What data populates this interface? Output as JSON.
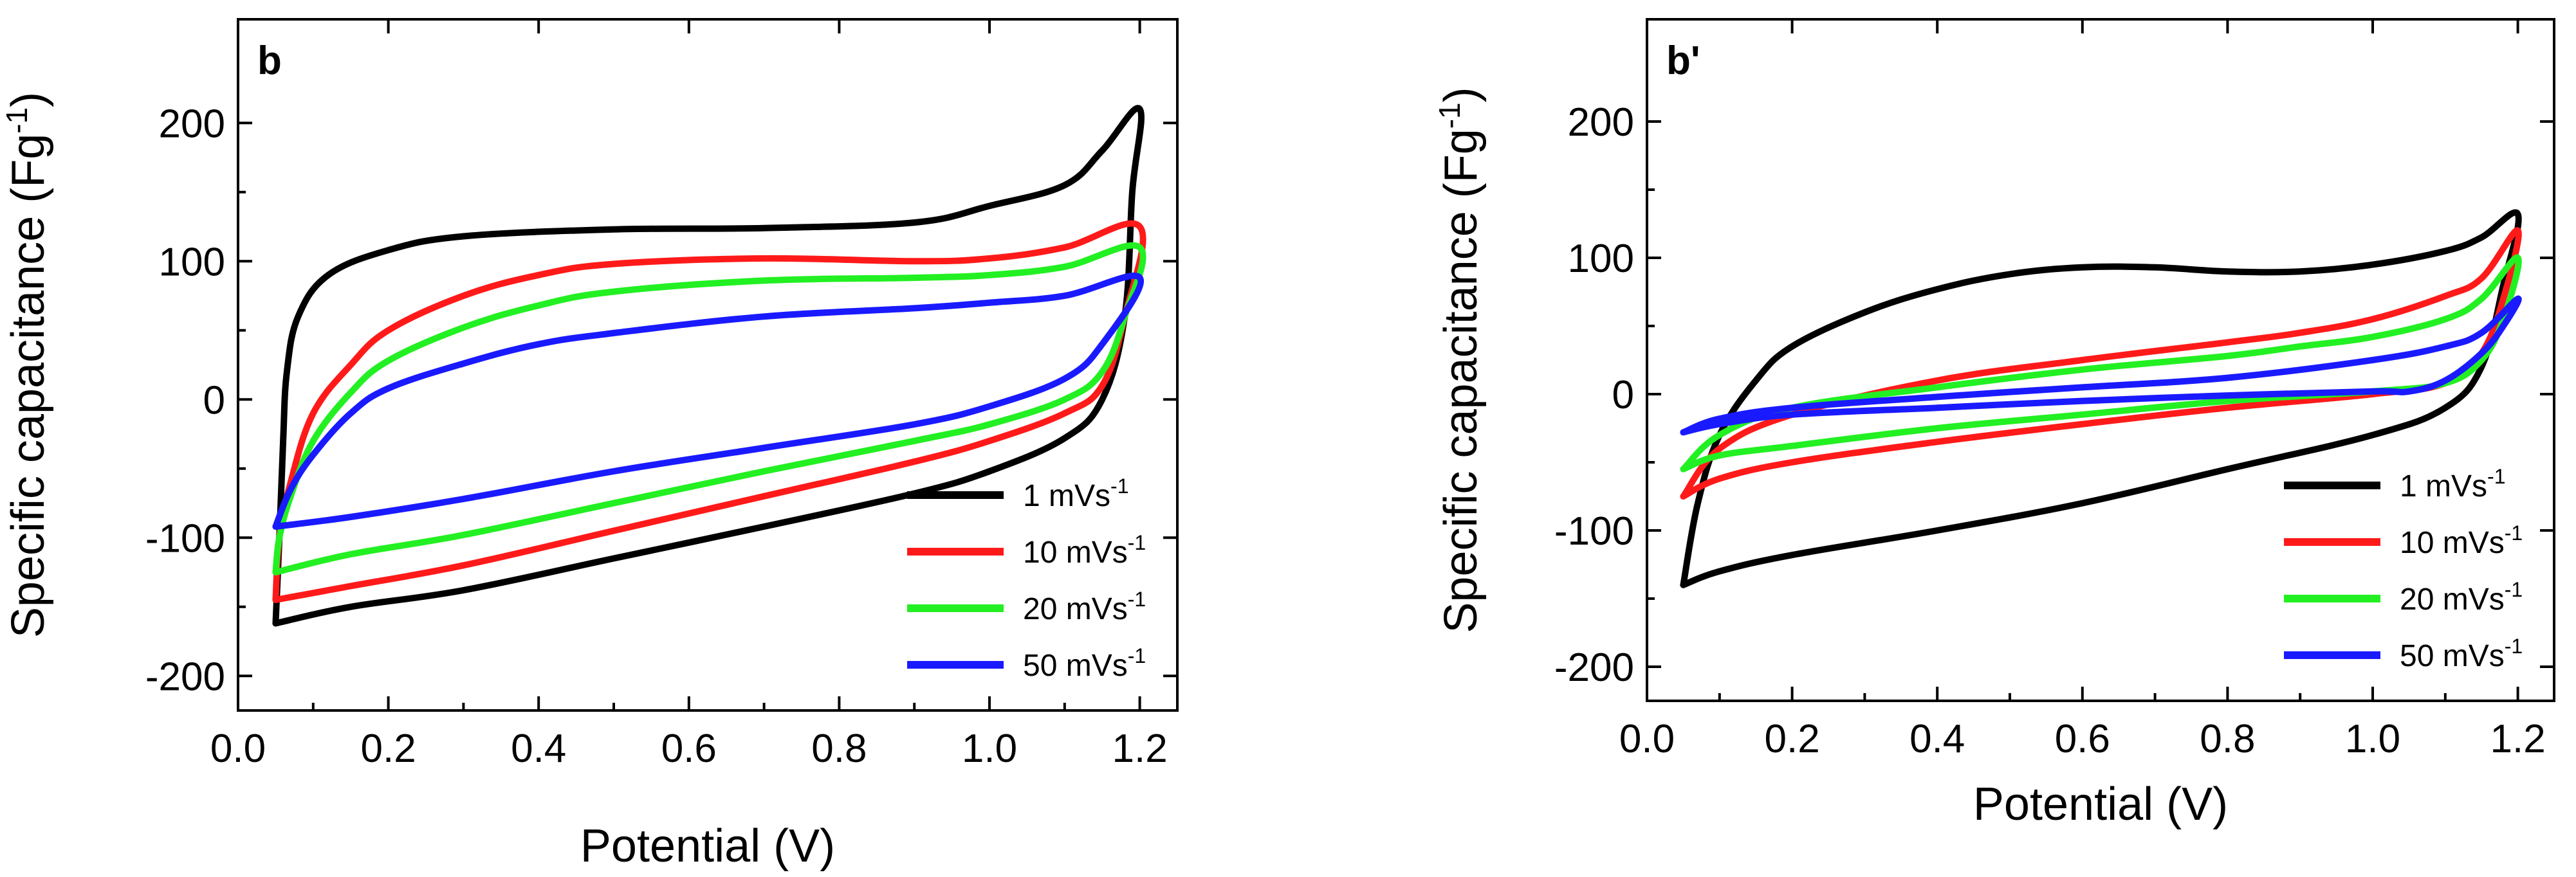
{
  "colors": {
    "black": "#000000",
    "red": "#ff1a1a",
    "green": "#22f022",
    "blue": "#1a1aff",
    "frame": "#000000"
  },
  "chart_data": [
    {
      "type": "line",
      "panel_label": "b",
      "xlabel": "Potential (V)",
      "ylabel_main": "Specific capacitance (Fg",
      "ylabel_sup": "-1",
      "ylabel_close": ")",
      "xlim": [
        0.0,
        1.25
      ],
      "ylim": [
        -225,
        275
      ],
      "xticks": [
        0.0,
        0.2,
        0.4,
        0.6,
        0.8,
        1.0,
        1.2
      ],
      "xtick_labels": [
        "0.0",
        "0.2",
        "0.4",
        "0.6",
        "0.8",
        "1.0",
        "1.2"
      ],
      "yticks": [
        -200,
        -100,
        0,
        100,
        200
      ],
      "ytick_labels": [
        "-200",
        "-100",
        "0",
        "100",
        "200"
      ],
      "legend": {
        "position": "bottom-right"
      },
      "series": [
        {
          "name": "1 mVs",
          "sup": "-1",
          "color": "#000000",
          "points": [
            [
              0.05,
              -162
            ],
            [
              0.15,
              -150
            ],
            [
              0.3,
              -138
            ],
            [
              0.5,
              -115
            ],
            [
              0.7,
              -92
            ],
            [
              0.9,
              -68
            ],
            [
              1.0,
              -52
            ],
            [
              1.1,
              -28
            ],
            [
              1.15,
              0
            ],
            [
              1.18,
              60
            ],
            [
              1.19,
              150
            ],
            [
              1.2,
              210
            ],
            [
              1.15,
              180
            ],
            [
              1.1,
              155
            ],
            [
              1.0,
              140
            ],
            [
              0.9,
              128
            ],
            [
              0.7,
              124
            ],
            [
              0.5,
              123
            ],
            [
              0.3,
              118
            ],
            [
              0.2,
              108
            ],
            [
              0.12,
              90
            ],
            [
              0.08,
              60
            ],
            [
              0.065,
              20
            ],
            [
              0.06,
              -30
            ],
            [
              0.055,
              -100
            ],
            [
              0.05,
              -162
            ]
          ]
        },
        {
          "name": "10 mVs",
          "sup": "-1",
          "color": "#ff1a1a",
          "points": [
            [
              0.05,
              -145
            ],
            [
              0.15,
              -135
            ],
            [
              0.3,
              -120
            ],
            [
              0.5,
              -95
            ],
            [
              0.7,
              -70
            ],
            [
              0.9,
              -45
            ],
            [
              1.0,
              -30
            ],
            [
              1.1,
              -10
            ],
            [
              1.15,
              10
            ],
            [
              1.18,
              60
            ],
            [
              1.2,
              125
            ],
            [
              1.1,
              110
            ],
            [
              1.0,
              102
            ],
            [
              0.9,
              100
            ],
            [
              0.7,
              102
            ],
            [
              0.5,
              98
            ],
            [
              0.4,
              90
            ],
            [
              0.3,
              75
            ],
            [
              0.2,
              50
            ],
            [
              0.15,
              25
            ],
            [
              0.1,
              -10
            ],
            [
              0.07,
              -60
            ],
            [
              0.055,
              -100
            ],
            [
              0.05,
              -145
            ]
          ]
        },
        {
          "name": "20 mVs",
          "sup": "-1",
          "color": "#22f022",
          "points": [
            [
              0.05,
              -125
            ],
            [
              0.15,
              -112
            ],
            [
              0.3,
              -98
            ],
            [
              0.5,
              -75
            ],
            [
              0.7,
              -52
            ],
            [
              0.9,
              -30
            ],
            [
              1.0,
              -18
            ],
            [
              1.1,
              0
            ],
            [
              1.15,
              20
            ],
            [
              1.18,
              60
            ],
            [
              1.2,
              110
            ],
            [
              1.1,
              96
            ],
            [
              1.0,
              90
            ],
            [
              0.9,
              88
            ],
            [
              0.7,
              86
            ],
            [
              0.5,
              78
            ],
            [
              0.4,
              68
            ],
            [
              0.3,
              52
            ],
            [
              0.2,
              28
            ],
            [
              0.15,
              5
            ],
            [
              0.1,
              -30
            ],
            [
              0.07,
              -70
            ],
            [
              0.055,
              -100
            ],
            [
              0.05,
              -125
            ]
          ]
        },
        {
          "name": "50 mVs",
          "sup": "-1",
          "color": "#1a1aff",
          "points": [
            [
              0.05,
              -92
            ],
            [
              0.15,
              -85
            ],
            [
              0.3,
              -72
            ],
            [
              0.5,
              -52
            ],
            [
              0.7,
              -35
            ],
            [
              0.9,
              -18
            ],
            [
              1.0,
              -5
            ],
            [
              1.1,
              15
            ],
            [
              1.15,
              40
            ],
            [
              1.2,
              88
            ],
            [
              1.1,
              75
            ],
            [
              1.0,
              70
            ],
            [
              0.9,
              66
            ],
            [
              0.7,
              60
            ],
            [
              0.5,
              48
            ],
            [
              0.4,
              40
            ],
            [
              0.3,
              26
            ],
            [
              0.2,
              8
            ],
            [
              0.15,
              -10
            ],
            [
              0.1,
              -40
            ],
            [
              0.07,
              -65
            ],
            [
              0.05,
              -92
            ]
          ]
        }
      ]
    },
    {
      "type": "line",
      "panel_label": "b'",
      "xlabel": "Potential (V)",
      "ylabel_main": "Specific capacitance (Fg",
      "ylabel_sup": "-1",
      "ylabel_close": ")",
      "xlim": [
        0.0,
        1.25
      ],
      "ylim": [
        -225,
        275
      ],
      "xticks": [
        0.0,
        0.2,
        0.4,
        0.6,
        0.8,
        1.0,
        1.2
      ],
      "xtick_labels": [
        "0.0",
        "0.2",
        "0.4",
        "0.6",
        "0.8",
        "1.0",
        "1.2"
      ],
      "yticks": [
        -200,
        -100,
        0,
        100,
        200
      ],
      "ytick_labels": [
        "-200",
        "-100",
        "0",
        "100",
        "200"
      ],
      "legend": {
        "position": "bottom-right"
      },
      "series": [
        {
          "name": "1 mVs",
          "sup": "-1",
          "color": "#000000",
          "points": [
            [
              0.05,
              -140
            ],
            [
              0.1,
              -130
            ],
            [
              0.2,
              -118
            ],
            [
              0.4,
              -100
            ],
            [
              0.6,
              -80
            ],
            [
              0.8,
              -55
            ],
            [
              1.0,
              -30
            ],
            [
              1.1,
              -10
            ],
            [
              1.15,
              20
            ],
            [
              1.18,
              80
            ],
            [
              1.2,
              132
            ],
            [
              1.15,
              115
            ],
            [
              1.1,
              105
            ],
            [
              1.0,
              95
            ],
            [
              0.9,
              90
            ],
            [
              0.8,
              90
            ],
            [
              0.7,
              93
            ],
            [
              0.6,
              93
            ],
            [
              0.5,
              88
            ],
            [
              0.4,
              77
            ],
            [
              0.3,
              60
            ],
            [
              0.2,
              35
            ],
            [
              0.15,
              10
            ],
            [
              0.1,
              -30
            ],
            [
              0.07,
              -80
            ],
            [
              0.05,
              -140
            ]
          ]
        },
        {
          "name": "10 mVs",
          "sup": "-1",
          "color": "#ff1a1a",
          "points": [
            [
              0.05,
              -75
            ],
            [
              0.1,
              -62
            ],
            [
              0.2,
              -50
            ],
            [
              0.4,
              -35
            ],
            [
              0.6,
              -22
            ],
            [
              0.8,
              -10
            ],
            [
              1.0,
              0
            ],
            [
              1.1,
              8
            ],
            [
              1.15,
              30
            ],
            [
              1.18,
              70
            ],
            [
              1.2,
              120
            ],
            [
              1.15,
              85
            ],
            [
              1.1,
              72
            ],
            [
              1.0,
              55
            ],
            [
              0.9,
              45
            ],
            [
              0.8,
              38
            ],
            [
              0.6,
              25
            ],
            [
              0.4,
              10
            ],
            [
              0.2,
              -15
            ],
            [
              0.1,
              -40
            ],
            [
              0.05,
              -75
            ]
          ]
        },
        {
          "name": "20 mVs",
          "sup": "-1",
          "color": "#22f022",
          "points": [
            [
              0.05,
              -55
            ],
            [
              0.1,
              -45
            ],
            [
              0.2,
              -38
            ],
            [
              0.4,
              -25
            ],
            [
              0.6,
              -15
            ],
            [
              0.8,
              -5
            ],
            [
              1.0,
              2
            ],
            [
              1.1,
              8
            ],
            [
              1.15,
              25
            ],
            [
              1.18,
              55
            ],
            [
              1.2,
              100
            ],
            [
              1.15,
              70
            ],
            [
              1.1,
              55
            ],
            [
              1.0,
              42
            ],
            [
              0.9,
              35
            ],
            [
              0.8,
              28
            ],
            [
              0.6,
              18
            ],
            [
              0.4,
              5
            ],
            [
              0.2,
              -10
            ],
            [
              0.1,
              -30
            ],
            [
              0.05,
              -55
            ]
          ]
        },
        {
          "name": "50 mVs",
          "sup": "-1",
          "color": "#1a1aff",
          "points": [
            [
              0.05,
              -28
            ],
            [
              0.1,
              -22
            ],
            [
              0.2,
              -15
            ],
            [
              0.4,
              -10
            ],
            [
              0.6,
              -5
            ],
            [
              0.8,
              -1
            ],
            [
              1.0,
              2
            ],
            [
              1.05,
              2
            ],
            [
              1.1,
              10
            ],
            [
              1.15,
              30
            ],
            [
              1.18,
              50
            ],
            [
              1.2,
              70
            ],
            [
              1.15,
              45
            ],
            [
              1.1,
              35
            ],
            [
              1.0,
              25
            ],
            [
              0.8,
              12
            ],
            [
              0.6,
              5
            ],
            [
              0.4,
              -2
            ],
            [
              0.2,
              -10
            ],
            [
              0.1,
              -18
            ],
            [
              0.05,
              -28
            ]
          ]
        }
      ]
    }
  ]
}
